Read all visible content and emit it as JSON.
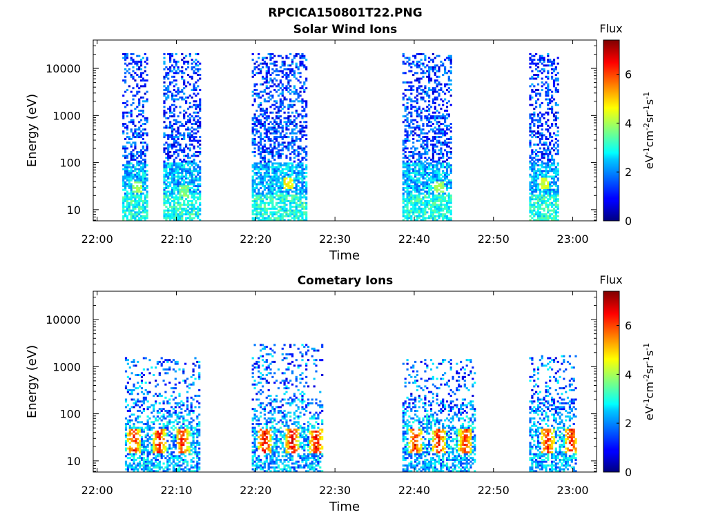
{
  "figure": {
    "title": "RPCICA150801T22.PNG"
  },
  "colors": {
    "colormap": "jet",
    "axis": "#000000",
    "background": "#ffffff"
  },
  "chart_data": [
    {
      "type": "heatmap",
      "title": "Solar Wind Ions",
      "xlabel": "Time",
      "ylabel": "Energy (eV)",
      "yscale": "log",
      "xlim": [
        "21:59:30",
        "23:03:00"
      ],
      "ylim": [
        5.8,
        40000
      ],
      "xticks": [
        "22:00",
        "22:10",
        "22:20",
        "22:30",
        "22:40",
        "22:50",
        "23:00"
      ],
      "yticks": [
        "10",
        "100",
        "1000",
        "10000"
      ],
      "colorbar": {
        "title": "Flux",
        "label": "eV-1cm-2sr-1s-1",
        "range": [
          0,
          7.4
        ],
        "ticks": [
          "0",
          "2",
          "4",
          "6"
        ]
      },
      "bursts": [
        {
          "start": "22:03:10",
          "end": "22:06:20",
          "max_energy_ev": 20000,
          "peak": "22:04:50",
          "peak_energy_ev": 30,
          "peak_flux": 4.2
        },
        {
          "start": "22:08:20",
          "end": "22:13:00",
          "max_energy_ev": 20000,
          "peak": "22:10:50",
          "peak_energy_ev": 25,
          "peak_flux": 4.0
        },
        {
          "start": "22:19:30",
          "end": "22:26:30",
          "max_energy_ev": 20000,
          "peak": "22:24:00",
          "peak_energy_ev": 35,
          "peak_flux": 5.0
        },
        {
          "start": "22:38:30",
          "end": "22:44:40",
          "max_energy_ev": 20000,
          "peak": "22:43:00",
          "peak_energy_ev": 30,
          "peak_flux": 4.2
        },
        {
          "start": "22:54:30",
          "end": "22:58:10",
          "max_energy_ev": 20000,
          "peak": "22:56:10",
          "peak_energy_ev": 35,
          "peak_flux": 4.5
        }
      ]
    },
    {
      "type": "heatmap",
      "title": "Cometary Ions",
      "xlabel": "Time",
      "ylabel": "Energy (eV)",
      "yscale": "log",
      "xlim": [
        "21:59:30",
        "23:03:00"
      ],
      "ylim": [
        5.8,
        40000
      ],
      "xticks": [
        "22:00",
        "22:10",
        "22:20",
        "22:30",
        "22:40",
        "22:50",
        "23:00"
      ],
      "yticks": [
        "10",
        "100",
        "1000",
        "10000"
      ],
      "colorbar": {
        "title": "Flux",
        "label": "eV-1cm-2sr-1s-1",
        "range": [
          0,
          7.4
        ],
        "ticks": [
          "0",
          "2",
          "4",
          "6"
        ]
      },
      "bursts": [
        {
          "start": "22:03:30",
          "end": "22:13:00",
          "max_energy_ev": 1500,
          "hot_centers": [
            "22:04:30",
            "22:07:40",
            "22:10:40"
          ],
          "hot_energy_ev": 25,
          "peak_flux": 7.0
        },
        {
          "start": "22:19:30",
          "end": "22:28:30",
          "max_energy_ev": 2800,
          "hot_centers": [
            "22:21:00",
            "22:24:30",
            "22:27:30"
          ],
          "hot_energy_ev": 25,
          "peak_flux": 7.2
        },
        {
          "start": "22:38:30",
          "end": "22:47:40",
          "max_energy_ev": 1400,
          "hot_centers": [
            "22:40:00",
            "22:43:00",
            "22:46:20"
          ],
          "hot_energy_ev": 25,
          "peak_flux": 7.0
        },
        {
          "start": "22:54:30",
          "end": "23:00:30",
          "max_energy_ev": 1600,
          "hot_centers": [
            "22:56:40",
            "22:59:40"
          ],
          "hot_energy_ev": 25,
          "peak_flux": 7.0
        }
      ]
    }
  ]
}
